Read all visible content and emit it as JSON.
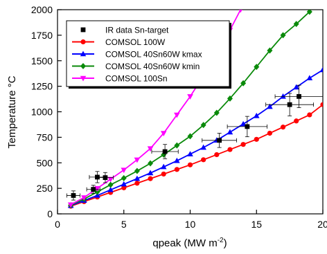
{
  "chart_data": {
    "type": "line",
    "xlabel": "qpeak (MW m",
    "xlabel_sup": "-2",
    "xlabel_close": ")",
    "ylabel": "Temperature °C",
    "xlim": [
      0,
      20
    ],
    "ylim": [
      0,
      2000
    ],
    "xticks": [
      0,
      5,
      10,
      15,
      20
    ],
    "yticks": [
      0,
      250,
      500,
      750,
      1000,
      1250,
      1500,
      1750,
      2000
    ],
    "legend_position": "top-left",
    "series": [
      {
        "name": "IR data Sn-target",
        "style": "scatter",
        "color": "#000000",
        "marker": "square",
        "points": [
          {
            "x": 1.2,
            "y": 180,
            "xerr": 0.5,
            "yerr": 45
          },
          {
            "x": 2.7,
            "y": 240,
            "xerr": 0.5,
            "yerr": 40
          },
          {
            "x": 3.0,
            "y": 360,
            "xerr": 0.6,
            "yerr": 55
          },
          {
            "x": 3.6,
            "y": 355,
            "xerr": 0.6,
            "yerr": 50
          },
          {
            "x": 8.1,
            "y": 610,
            "xerr": 1.0,
            "yerr": 70
          },
          {
            "x": 12.2,
            "y": 720,
            "xerr": 1.3,
            "yerr": 70
          },
          {
            "x": 14.3,
            "y": 855,
            "xerr": 1.5,
            "yerr": 100
          },
          {
            "x": 17.5,
            "y": 1070,
            "xerr": 1.8,
            "yerr": 110
          },
          {
            "x": 18.2,
            "y": 1150,
            "xerr": 1.8,
            "yerr": 110
          }
        ]
      },
      {
        "name": "COMSOL 100W",
        "style": "line",
        "color": "#ff0000",
        "marker": "circle",
        "x": [
          1,
          2,
          3,
          4,
          5,
          6,
          7,
          8,
          9,
          10,
          11,
          12,
          13,
          14,
          15,
          16,
          17,
          18,
          19,
          20
        ],
        "values": [
          75,
          120,
          165,
          210,
          255,
          300,
          345,
          390,
          435,
          480,
          530,
          580,
          630,
          680,
          730,
          790,
          850,
          910,
          970,
          1070
        ]
      },
      {
        "name": "COMSOL 40Sn60W kmax",
        "style": "line",
        "color": "#0000ff",
        "marker": "triangle-up",
        "x": [
          1,
          2,
          3,
          4,
          5,
          6,
          7,
          8,
          9,
          10,
          11,
          12,
          13,
          14,
          15,
          16,
          17,
          18,
          19,
          20
        ],
        "values": [
          80,
          130,
          180,
          235,
          290,
          345,
          400,
          460,
          520,
          585,
          650,
          720,
          800,
          880,
          960,
          1050,
          1150,
          1240,
          1330,
          1410
        ]
      },
      {
        "name": "COMSOL 40Sn60W kmin",
        "style": "line",
        "color": "#0a8a0a",
        "marker": "diamond",
        "x": [
          1,
          2,
          3,
          4,
          5,
          6,
          7,
          8,
          9,
          10,
          11,
          12,
          13,
          14,
          15,
          16,
          17,
          18,
          19
        ],
        "values": [
          85,
          145,
          215,
          285,
          350,
          420,
          495,
          580,
          670,
          760,
          870,
          990,
          1130,
          1280,
          1440,
          1600,
          1750,
          1860,
          1980
        ]
      },
      {
        "name": "COMSOL 100Sn",
        "style": "line",
        "color": "#ff00ff",
        "marker": "triangle-down",
        "x": [
          1,
          2,
          3,
          4,
          5,
          6,
          7,
          8,
          9,
          10,
          11,
          12,
          13,
          13.8
        ],
        "values": [
          90,
          160,
          250,
          340,
          430,
          530,
          640,
          790,
          970,
          1150,
          1350,
          1560,
          1800,
          2000
        ]
      }
    ]
  }
}
